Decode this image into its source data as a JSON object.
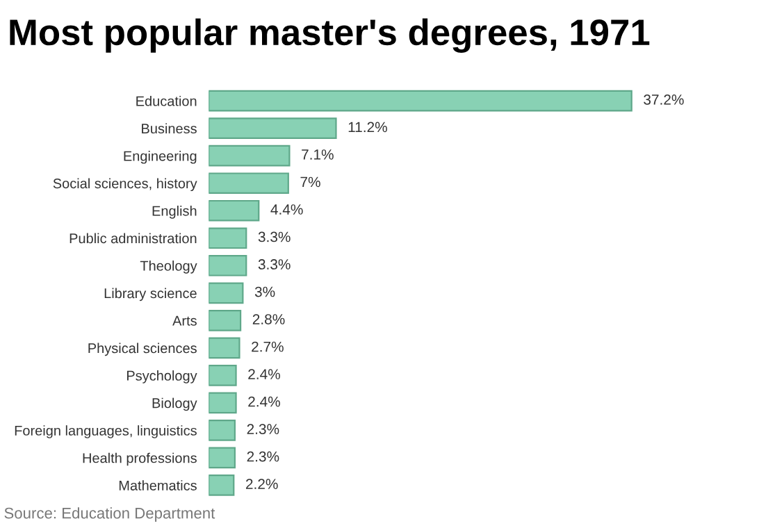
{
  "chart_data": {
    "type": "bar",
    "orientation": "horizontal",
    "title": "Most popular master's degrees, 1971",
    "categories": [
      "Education",
      "Business",
      "Engineering",
      "Social sciences, history",
      "English",
      "Public administration",
      "Theology",
      "Library science",
      "Arts",
      "Physical sciences",
      "Psychology",
      "Biology",
      "Foreign languages, linguistics",
      "Health professions",
      "Mathematics"
    ],
    "values": [
      37.2,
      11.2,
      7.1,
      7,
      4.4,
      3.3,
      3.3,
      3,
      2.8,
      2.7,
      2.4,
      2.4,
      2.3,
      2.3,
      2.2
    ],
    "value_labels": [
      "37.2%",
      "11.2%",
      "7.1%",
      "7%",
      "4.4%",
      "3.3%",
      "3.3%",
      "3%",
      "2.8%",
      "2.7%",
      "2.4%",
      "2.4%",
      "2.3%",
      "2.3%",
      "2.2%"
    ],
    "color": "#88d1b4",
    "annotations": [
      "Source: Education Department"
    ]
  }
}
